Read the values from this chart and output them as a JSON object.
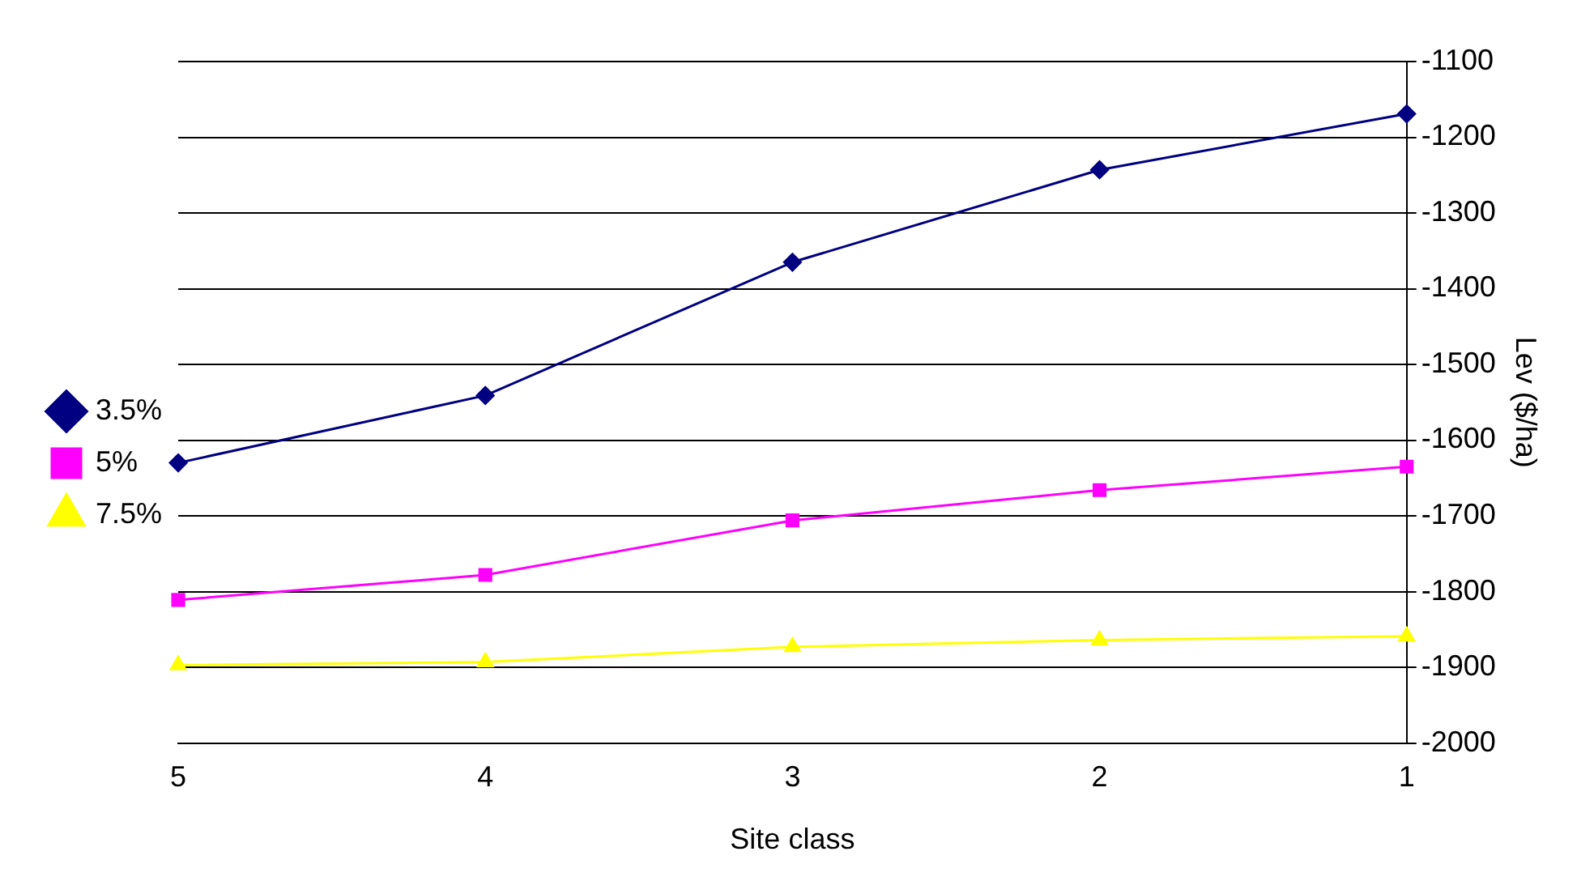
{
  "chart_data": {
    "type": "line",
    "xlabel": "Site class",
    "ylabel": "Lev ($/ha)",
    "categories": [
      "5",
      "4",
      "3",
      "2",
      "1"
    ],
    "series": [
      {
        "name": "3.5%",
        "color": "#000080",
        "marker": "diamond",
        "values": [
          -1630,
          -1541,
          -1365,
          -1243,
          -1169
        ]
      },
      {
        "name": "5%",
        "color": "#ff00ff",
        "marker": "square",
        "values": [
          -1811,
          -1778,
          -1706,
          -1666,
          -1635
        ]
      },
      {
        "name": "7.5%",
        "color": "#ffff00",
        "marker": "triangle",
        "values": [
          -1897,
          -1893,
          -1873,
          -1864,
          -1859
        ]
      }
    ],
    "ylim": [
      -2000,
      -1100
    ],
    "yticks": [
      -2000,
      -1900,
      -1800,
      -1700,
      -1600,
      -1500,
      -1400,
      -1300,
      -1200,
      -1100
    ],
    "grid": "y",
    "legend": "left",
    "line_style": "solid"
  }
}
